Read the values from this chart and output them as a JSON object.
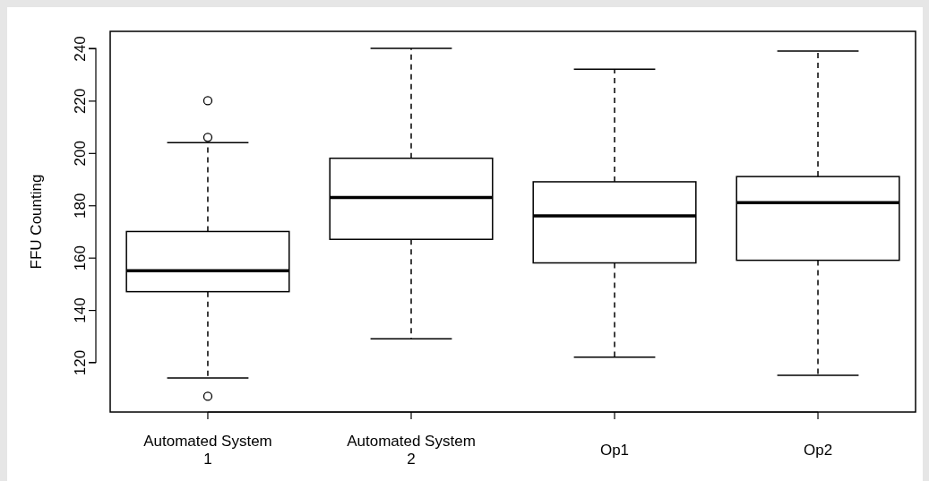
{
  "chart_data": {
    "type": "box",
    "ylabel": "FFU Counting",
    "categories": [
      "Automated System 1",
      "Automated System 2",
      "Op1",
      "Op2"
    ],
    "boxes": [
      {
        "low": 114,
        "q1": 147,
        "median": 155,
        "q3": 170,
        "high": 204,
        "outliers": [
          220,
          206,
          107
        ]
      },
      {
        "low": 129,
        "q1": 167,
        "median": 183,
        "q3": 198,
        "high": 240
      },
      {
        "low": 122,
        "q1": 158,
        "median": 176,
        "q3": 189,
        "high": 232
      },
      {
        "low": 115,
        "q1": 159,
        "median": 181,
        "q3": 191,
        "high": 239
      }
    ],
    "ylim": [
      101,
      246.5
    ],
    "yticks": [
      120,
      140,
      160,
      180,
      200,
      220,
      240
    ],
    "grid": false,
    "color": "#000000"
  }
}
